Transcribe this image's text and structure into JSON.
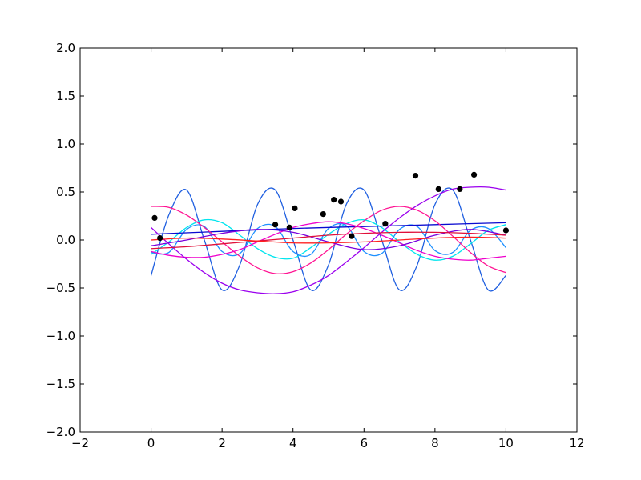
{
  "chart_data": {
    "type": "line",
    "title": "",
    "xlabel": "",
    "ylabel": "",
    "xlim": [
      -2,
      12
    ],
    "ylim": [
      -2.0,
      2.0
    ],
    "grid": false,
    "legend": "none",
    "xticks": [
      -2,
      0,
      2,
      4,
      6,
      8,
      10,
      12
    ],
    "xtick_labels": [
      "−2",
      "0",
      "2",
      "4",
      "6",
      "8",
      "10",
      "12"
    ],
    "yticks": [
      -2.0,
      -1.5,
      -1.0,
      -0.5,
      0.0,
      0.5,
      1.0,
      1.5,
      2.0
    ],
    "ytick_labels": [
      "−2.0",
      "−1.5",
      "−1.0",
      "−0.5",
      "0.0",
      "0.5",
      "1.0",
      "1.5",
      "2.0"
    ],
    "points": {
      "color": "#000000",
      "x": [
        0.1,
        0.25,
        3.5,
        3.9,
        4.05,
        4.85,
        5.15,
        5.35,
        5.65,
        6.6,
        7.45,
        8.1,
        8.7,
        9.1,
        10.0
      ],
      "y": [
        0.23,
        0.02,
        0.16,
        0.13,
        0.33,
        0.27,
        0.42,
        0.4,
        0.04,
        0.17,
        0.67,
        0.53,
        0.53,
        0.68,
        0.1
      ]
    },
    "series": [
      {
        "color": "#1f5fe0",
        "x": [
          0,
          0.5,
          1,
          1.5,
          2,
          2.5,
          3,
          3.5,
          4,
          4.5,
          5,
          5.5,
          6,
          6.5,
          7,
          7.5,
          8,
          8.5,
          9,
          9.5,
          10
        ],
        "y": [
          -0.37,
          0.26,
          0.52,
          0.0,
          -0.52,
          -0.26,
          0.37,
          0.52,
          0.0,
          -0.52,
          -0.26,
          0.37,
          0.52,
          0.0,
          -0.52,
          -0.26,
          0.37,
          0.52,
          0.0,
          -0.52,
          -0.37
        ]
      },
      {
        "color": "#00e5ee",
        "x": [
          0,
          0.5,
          1,
          1.5,
          2,
          2.5,
          3,
          3.5,
          4,
          4.5,
          5,
          5.5,
          6,
          6.5,
          7,
          7.5,
          8,
          8.5,
          9,
          9.5,
          10
        ],
        "y": [
          -0.15,
          -0.02,
          0.13,
          0.21,
          0.18,
          0.05,
          -0.09,
          -0.18,
          -0.19,
          -0.08,
          0.06,
          0.17,
          0.21,
          0.13,
          -0.02,
          -0.15,
          -0.21,
          -0.17,
          -0.04,
          0.1,
          0.16
        ]
      },
      {
        "color": "#1e90ff",
        "x": [
          0,
          0.5,
          1,
          1.5,
          2,
          2.5,
          3,
          3.5,
          4,
          4.5,
          5,
          5.5,
          6,
          6.5,
          7,
          7.5,
          8,
          8.5,
          9,
          9.5,
          10
        ],
        "y": [
          -0.13,
          -0.13,
          0.11,
          0.14,
          -0.12,
          -0.14,
          0.12,
          0.14,
          -0.12,
          -0.15,
          0.12,
          0.15,
          -0.12,
          -0.14,
          0.11,
          0.14,
          -0.11,
          -0.13,
          0.1,
          0.12,
          -0.08
        ]
      },
      {
        "color": "#0a0ad0",
        "x": [
          0,
          2,
          4,
          6,
          8,
          10
        ],
        "y": [
          0.06,
          0.09,
          0.12,
          0.14,
          0.16,
          0.18
        ]
      },
      {
        "color": "#ff1493",
        "x": [
          0,
          0.5,
          1,
          1.5,
          2,
          2.5,
          3,
          3.5,
          4,
          4.5,
          5,
          5.5,
          6,
          6.5,
          7,
          7.5,
          8,
          8.5,
          9,
          9.5,
          10
        ],
        "y": [
          0.35,
          0.34,
          0.26,
          0.13,
          -0.02,
          -0.17,
          -0.29,
          -0.35,
          -0.33,
          -0.24,
          -0.1,
          0.06,
          0.2,
          0.31,
          0.35,
          0.31,
          0.2,
          0.04,
          -0.13,
          -0.27,
          -0.34
        ]
      },
      {
        "color": "#ee00cc",
        "x": [
          0,
          0.5,
          1,
          1.5,
          2,
          2.5,
          3,
          3.5,
          4,
          4.5,
          5,
          5.5,
          6,
          6.5,
          7,
          7.5,
          8,
          8.5,
          9,
          9.5,
          10
        ],
        "y": [
          -0.12,
          -0.16,
          -0.18,
          -0.18,
          -0.15,
          -0.1,
          -0.02,
          0.06,
          0.13,
          0.17,
          0.19,
          0.17,
          0.12,
          0.05,
          -0.03,
          -0.11,
          -0.17,
          -0.2,
          -0.21,
          -0.19,
          -0.17
        ]
      },
      {
        "color": "#9b00ee",
        "x": [
          0,
          0.5,
          1,
          1.5,
          2,
          2.5,
          3,
          3.5,
          4,
          4.5,
          5,
          5.5,
          6,
          6.5,
          7,
          7.5,
          8,
          8.5,
          9,
          9.5,
          10
        ],
        "y": [
          0.13,
          -0.04,
          -0.2,
          -0.34,
          -0.45,
          -0.52,
          -0.55,
          -0.56,
          -0.54,
          -0.47,
          -0.37,
          -0.23,
          -0.08,
          0.08,
          0.23,
          0.36,
          0.46,
          0.53,
          0.55,
          0.55,
          0.52
        ]
      },
      {
        "color": "#7a00dd",
        "x": [
          0,
          1,
          2,
          3,
          4,
          5,
          6,
          7,
          8,
          9,
          10
        ],
        "y": [
          -0.06,
          0.0,
          0.07,
          0.11,
          0.08,
          -0.02,
          -0.1,
          -0.06,
          0.05,
          0.11,
          0.05
        ]
      },
      {
        "color": "#e0103a",
        "x": [
          0,
          1,
          2,
          3,
          4,
          5,
          6,
          7,
          8,
          9,
          10
        ],
        "y": [
          -0.09,
          -0.07,
          -0.04,
          -0.01,
          0.02,
          0.05,
          0.07,
          0.08,
          0.08,
          0.07,
          0.05
        ]
      },
      {
        "color": "#ff2020",
        "x": [
          0,
          1,
          2,
          3,
          4,
          5,
          6,
          7,
          8,
          9,
          10
        ],
        "y": [
          0.0,
          0.02,
          0.01,
          -0.01,
          -0.03,
          -0.03,
          -0.02,
          0.0,
          0.02,
          0.03,
          0.02
        ]
      }
    ]
  }
}
